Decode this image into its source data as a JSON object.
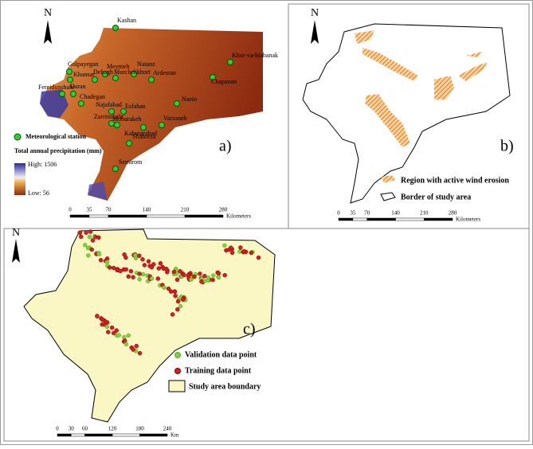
{
  "panel_a": {
    "label": "a)",
    "north": "N",
    "stations": [
      "Kashan",
      "Natanz",
      "Meymeh",
      "Khur-va-biabanak",
      "Golpayegan",
      "Khansar",
      "Ardestan",
      "Chapanan",
      "Dehagh",
      "Murchehkhort",
      "Daran",
      "Fereidunshahr",
      "Naein",
      "Chadegan",
      "Najafabad",
      "Esfahan",
      "Zarrinshahr",
      "Mobarakeh",
      "Varzaneh",
      "Kabutarabad",
      "Shahreza",
      "Semirom"
    ],
    "legend": {
      "station": "Meteorological station",
      "precip_title": "Total annual precipitation (mm)",
      "high": "High: 1506",
      "low": "Low: 56"
    },
    "scale": {
      "ticks": [
        0,
        35,
        70,
        140,
        210,
        280
      ],
      "unit": "Kilometers"
    }
  },
  "panel_b": {
    "label": "b)",
    "north": "N",
    "legend": {
      "erosion": "Region with active wind erosion",
      "border": "Border of study area"
    },
    "scale": {
      "ticks": [
        0,
        35,
        70,
        140,
        210,
        280
      ],
      "unit": "Kilometers"
    }
  },
  "panel_c": {
    "label": "c)",
    "north": "N",
    "legend": {
      "validation": "Validation data point",
      "training": "Training data point",
      "boundary": "Study area boundary"
    },
    "scale": {
      "ticks": [
        0,
        30,
        60,
        120,
        180,
        240
      ],
      "unit": "Km"
    }
  }
}
